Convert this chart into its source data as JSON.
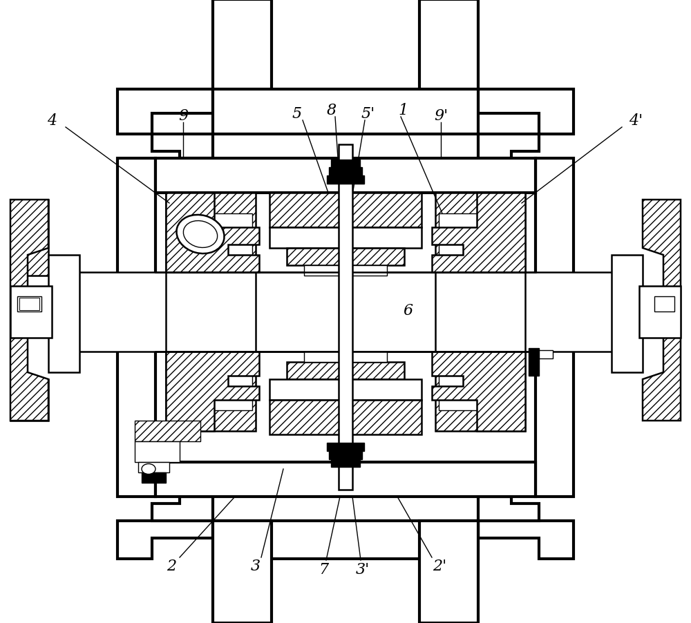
{
  "background_color": "#ffffff",
  "line_color": "#000000",
  "lw_heavy": 3.0,
  "lw_med": 1.8,
  "lw_thin": 1.0,
  "lw_xtra": 0.7,
  "label_fontsize": 16,
  "label_texts": {
    "4": "4",
    "9": "9",
    "5": "5",
    "8": "8",
    "5p": "5'",
    "1": "1",
    "9p": "9'",
    "4p": "4'",
    "6": "6",
    "2": "2",
    "3": "3",
    "7": "7",
    "3p": "3'",
    "2p": "2'"
  }
}
